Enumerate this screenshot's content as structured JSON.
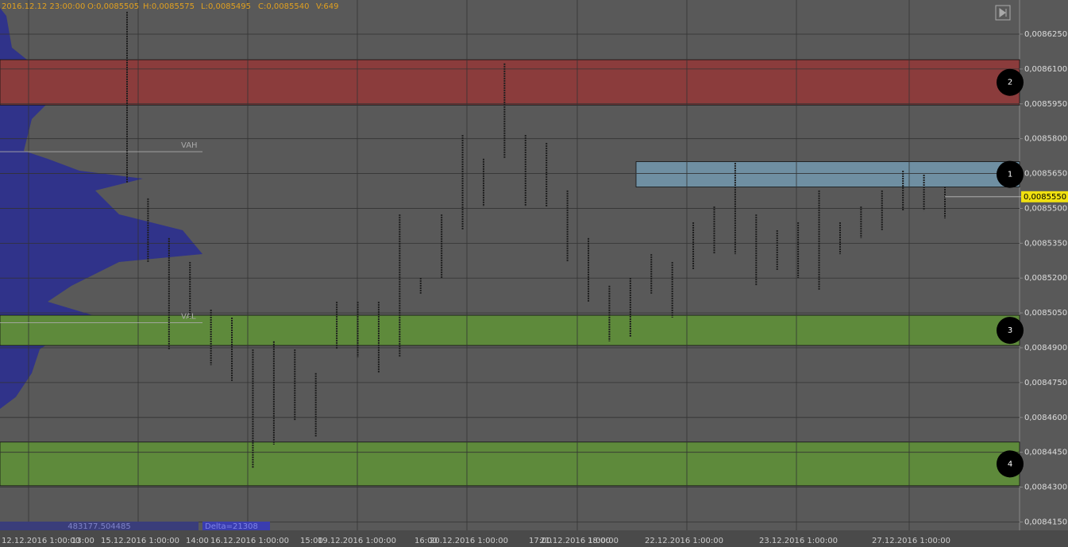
{
  "header": {
    "time": "2016.12.12 23:00:00",
    "open": "O:0,0085505",
    "high": "H:0,0085575",
    "low": "L:0,0085495",
    "close": "C:0,0085540",
    "volume": "V:649"
  },
  "chart_data": {
    "type": "range-bar",
    "ylim": [
      0.0084114,
      0.0086397
    ],
    "yticks": [
      {
        "value": 0.008625,
        "label": "0,0086250"
      },
      {
        "value": 0.00861,
        "label": "0,0086100"
      },
      {
        "value": 0.008595,
        "label": "0,0085950"
      },
      {
        "value": 0.00858,
        "label": "0,0085800"
      },
      {
        "value": 0.008565,
        "label": "0,0085650"
      },
      {
        "value": 0.00855,
        "label": "0,0085500"
      },
      {
        "value": 0.008535,
        "label": "0,0085350"
      },
      {
        "value": 0.00852,
        "label": "0,0085200"
      },
      {
        "value": 0.008505,
        "label": "0,0085050"
      },
      {
        "value": 0.00849,
        "label": "0,0084900"
      },
      {
        "value": 0.008475,
        "label": "0,0084750"
      },
      {
        "value": 0.00846,
        "label": "0,0084600"
      },
      {
        "value": 0.008445,
        "label": "0,0084450"
      },
      {
        "value": 0.00843,
        "label": "0,0084300"
      },
      {
        "value": 0.008415,
        "label": "0,0084150"
      }
    ],
    "highs": [
      0.0086346,
      0.0085543,
      0.0085372,
      0.0085269,
      0.0085064,
      0.008503,
      0.0084893,
      0.0084928,
      0.0084893,
      0.0084791,
      0.0085098,
      0.0085098,
      0.0085098,
      0.0085474,
      0.0085201,
      0.0085474,
      0.0085816,
      0.0085714,
      0.0086124,
      0.0085816,
      0.0085782,
      0.0085577,
      0.0085372,
      0.0085167,
      0.0085201,
      0.0085303,
      0.0085269,
      0.008544,
      0.0085508,
      0.0085696,
      0.0085474,
      0.0085406,
      0.008544,
      0.0085577,
      0.008544,
      0.0085508,
      0.0085577,
      0.0085662,
      0.0085645,
      0.0085594
    ],
    "lows": [
      0.0085611,
      0.0085269,
      0.0084893,
      0.008503,
      0.0084825,
      0.0084757,
      0.0084381,
      0.0084483,
      0.0084586,
      0.0084518,
      0.0084893,
      0.0084859,
      0.0084791,
      0.0084859,
      0.0085133,
      0.0085201,
      0.0085406,
      0.0085508,
      0.0085714,
      0.0085508,
      0.0085508,
      0.0085269,
      0.0085098,
      0.0084928,
      0.0084945,
      0.0085133,
      0.008503,
      0.0085235,
      0.0085303,
      0.0085303,
      0.0085167,
      0.0085235,
      0.0085201,
      0.008515,
      0.0085303,
      0.0085372,
      0.0085406,
      0.0085491,
      0.0085491,
      0.0085457
    ],
    "color": "#1e1e1e",
    "zones": [
      {
        "name": "2",
        "range": [
          0.0085945,
          0.008614
        ],
        "color": "#8b3c3c"
      },
      {
        "name": "1",
        "range": [
          0.0085592,
          0.0085701
        ],
        "color": "#6f8fa2"
      },
      {
        "name": "3",
        "range": [
          0.008491,
          0.008504
        ],
        "color": "#5e8a3b"
      },
      {
        "name": "4",
        "range": [
          0.0084306,
          0.0084494
        ],
        "color": "#5e8a3b"
      }
    ],
    "levels": [
      {
        "name": "VAH",
        "value": 0.0085744
      },
      {
        "name": "VAL",
        "value": 0.0085008
      }
    ],
    "last_price": {
      "value": 0.008555,
      "label": "0,0085550"
    },
    "grid": true
  },
  "footer": {
    "volume_total": "483177.504485",
    "delta": "Delta=21308",
    "time_labels": [
      "12.12.2016 1:00:00",
      "13:00",
      "15.12.2016 1:00:00",
      "14:00",
      "16.12.2016 1:00:00",
      "15:00",
      "19.12.2016 1:00:00",
      "16:00",
      "20.12.2016 1:00:00",
      "17:00",
      "21.12.2016 1:00:00",
      "18:00",
      "22.12.2016 1:00:00",
      "23.12.2016 1:00:00",
      "27.12.2016 1:00:00"
    ]
  }
}
